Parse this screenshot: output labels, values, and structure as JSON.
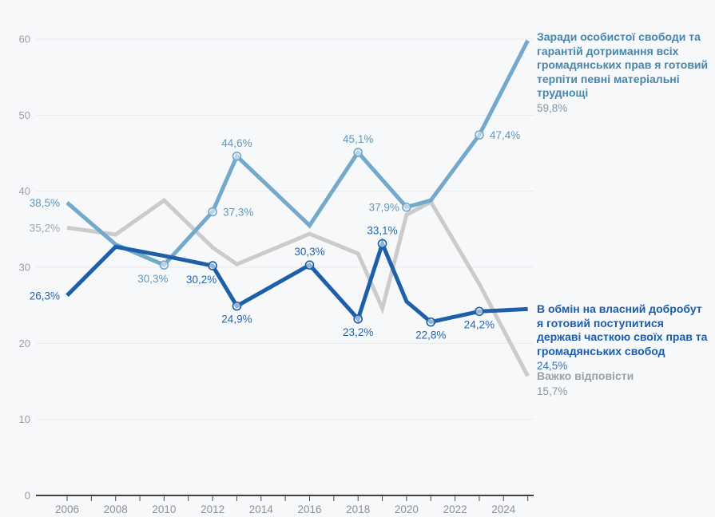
{
  "colors": {
    "background": "#f7f8fa",
    "gridline": "#e8eaed",
    "axis_line": "#3f3f3f",
    "tick_mark": "#4a4a4a",
    "x_tick_label": "#8d9094",
    "y_tick_label": "#9b9ea3"
  },
  "chart_data": {
    "type": "line",
    "title": "",
    "xlabel": "",
    "ylabel": "",
    "x_domain": [
      2006,
      2025
    ],
    "ylim": [
      0,
      60
    ],
    "y_ticks": [
      0,
      10,
      20,
      30,
      40,
      50,
      60
    ],
    "x_minor_ticks": [
      2006,
      2007,
      2008,
      2009,
      2010,
      2011,
      2012,
      2013,
      2014,
      2015,
      2016,
      2017,
      2018,
      2019,
      2020,
      2021,
      2022,
      2023,
      2024,
      2025
    ],
    "x_labeled_ticks": [
      "2006",
      "2008",
      "2010",
      "2012",
      "2014",
      "2016",
      "2018",
      "2020",
      "2022",
      "2024"
    ],
    "grid": "horizontal",
    "legend_position": "right-of-line-ends",
    "series": [
      {
        "id": "hard",
        "name": "Важко відповісти",
        "color": "#cbcbcb",
        "label_color": "#a2a7ad",
        "legend_title_color": "#9aa0a7",
        "legend_value_color": "#8f959c",
        "legend_value": "15,7%",
        "points": [
          {
            "year": 2006,
            "value": 35.2,
            "label": "35,2%",
            "label_pos": "left"
          },
          {
            "year": 2008,
            "value": 34.3
          },
          {
            "year": 2010,
            "value": 38.8
          },
          {
            "year": 2012,
            "value": 32.6
          },
          {
            "year": 2013,
            "value": 30.4
          },
          {
            "year": 2016,
            "value": 34.4
          },
          {
            "year": 2018,
            "value": 31.8
          },
          {
            "year": 2019,
            "value": 24.6
          },
          {
            "year": 2020,
            "value": 36.9
          },
          {
            "year": 2021,
            "value": 38.6
          },
          {
            "year": 2023,
            "value": 27.8
          },
          {
            "year": 2025,
            "value": 15.7
          }
        ]
      },
      {
        "id": "freedom",
        "name": "Заради особистої свободи та гарантій дотримання всіх громадянських прав я готовий терпіти певні матеріальні труднощі",
        "color": "#73a9cb",
        "label_color": "#5d99bd",
        "legend_title_color": "#4886ac",
        "legend_value_color": "#7f99ab",
        "legend_value": "59,8%",
        "points": [
          {
            "year": 2006,
            "value": 38.5,
            "label": "38,5%",
            "label_pos": "left"
          },
          {
            "year": 2008,
            "value": 33.0
          },
          {
            "year": 2010,
            "value": 30.3,
            "label": "30,3%",
            "label_pos": "below-left",
            "marker": true
          },
          {
            "year": 2012,
            "value": 37.3,
            "label": "37,3%",
            "label_pos": "right",
            "marker": true
          },
          {
            "year": 2013,
            "value": 44.6,
            "label": "44,6%",
            "label_pos": "above",
            "marker": true
          },
          {
            "year": 2016,
            "value": 35.5
          },
          {
            "year": 2018,
            "value": 45.1,
            "label": "45,1%",
            "label_pos": "above",
            "marker": true
          },
          {
            "year": 2020,
            "value": 37.9,
            "label": "37,9%",
            "label_pos": "left",
            "marker": true
          },
          {
            "year": 2021,
            "value": 38.8
          },
          {
            "year": 2023,
            "value": 47.4,
            "label": "47,4%",
            "label_pos": "right",
            "marker": true
          },
          {
            "year": 2025,
            "value": 59.8
          }
        ]
      },
      {
        "id": "tradeoff",
        "name": "В обмін на власний добробут я готовий поступитися державі часткою своїх прав та громадянських свобод",
        "color": "#1d5fa9",
        "label_color": "#2365ae",
        "legend_title_color": "#1b5dad",
        "legend_value_color": "#3a6fa8",
        "legend_value": "24,5%",
        "points": [
          {
            "year": 2006,
            "value": 26.3,
            "label": "26,3%",
            "label_pos": "left"
          },
          {
            "year": 2008,
            "value": 32.7
          },
          {
            "year": 2010,
            "value": 31.5
          },
          {
            "year": 2012,
            "value": 30.2,
            "label": "30,2%",
            "label_pos": "below-left",
            "marker": true
          },
          {
            "year": 2013,
            "value": 24.9,
            "label": "24,9%",
            "label_pos": "below",
            "marker": true
          },
          {
            "year": 2016,
            "value": 30.3,
            "label": "30,3%",
            "label_pos": "above",
            "marker": true
          },
          {
            "year": 2018,
            "value": 23.2,
            "label": "23,2%",
            "label_pos": "below",
            "marker": true
          },
          {
            "year": 2019,
            "value": 33.1,
            "label": "33,1%",
            "label_pos": "above",
            "marker": true
          },
          {
            "year": 2020,
            "value": 25.5
          },
          {
            "year": 2021,
            "value": 22.8,
            "label": "22,8%",
            "label_pos": "below",
            "marker": true
          },
          {
            "year": 2023,
            "value": 24.2,
            "label": "24,2%",
            "label_pos": "below",
            "marker": true
          },
          {
            "year": 2025,
            "value": 24.5
          }
        ]
      }
    ],
    "legend": [
      {
        "title": "Заради особистої свободи та гарантій дотримання всіх громадянських прав я готовий терпіти певні матеріальні труднощі",
        "value": "59,8%"
      },
      {
        "title": "В обмін на власний добробут я готовий поступитися державі часткою своїх прав та громадянських свобод",
        "value": "24,5%"
      },
      {
        "title": "Важко відповісти",
        "value": "15,7%"
      }
    ]
  }
}
